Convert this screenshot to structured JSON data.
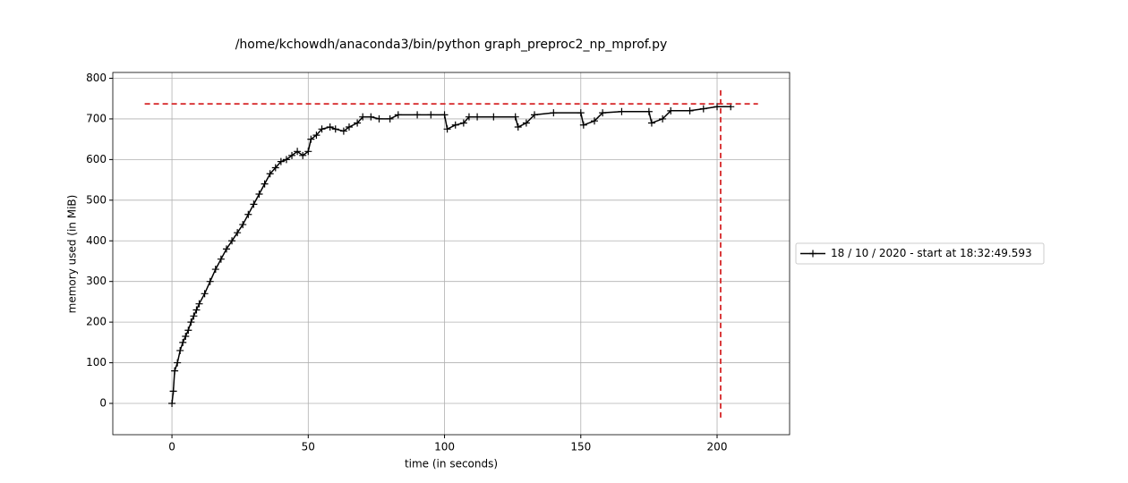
{
  "chart_data": {
    "type": "line",
    "title": "/home/kchowdh/anaconda3/bin/python graph_preproc2_np_mprof.py",
    "x_label": "time (in seconds)",
    "y_label": "memory used (in MiB)",
    "x": [
      0,
      0.5,
      1,
      2,
      3,
      4,
      5,
      6,
      7,
      8,
      9,
      10,
      12,
      14,
      16,
      18,
      20,
      22,
      24,
      26,
      28,
      30,
      32,
      34,
      36,
      38,
      40,
      42,
      44,
      46,
      48,
      50,
      51,
      53,
      55,
      58,
      60,
      63,
      65,
      68,
      70,
      73,
      76,
      80,
      83,
      90,
      95,
      100,
      101,
      104,
      107,
      109,
      112,
      118,
      126,
      127,
      130,
      133,
      140,
      150,
      151,
      155,
      158,
      165,
      175,
      176,
      180,
      183,
      190,
      195,
      200,
      205
    ],
    "series": [
      {
        "name": "18 / 10 / 2020 - start at 18:32:49.593",
        "color": "#000000",
        "values": [
          0,
          30,
          80,
          100,
          130,
          150,
          165,
          180,
          200,
          215,
          230,
          245,
          270,
          300,
          330,
          355,
          380,
          400,
          420,
          440,
          465,
          490,
          515,
          540,
          565,
          580,
          595,
          600,
          610,
          620,
          610,
          620,
          650,
          660,
          675,
          680,
          675,
          670,
          680,
          690,
          705,
          705,
          700,
          700,
          710,
          710,
          710,
          710,
          675,
          685,
          690,
          705,
          705,
          705,
          705,
          680,
          690,
          710,
          715,
          715,
          685,
          695,
          715,
          718,
          718,
          690,
          700,
          720,
          720,
          725,
          730,
          730
        ]
      }
    ],
    "reference_lines": [
      {
        "axis": "y",
        "value": 737,
        "range": [
          -10,
          215
        ],
        "color": "#d62728"
      },
      {
        "axis": "x",
        "value": 201.3,
        "range": [
          -35,
          775
        ],
        "color": "#d62728"
      }
    ],
    "xlim": [
      -21.7,
      226.6
    ],
    "ylim": [
      -77,
      814.3
    ],
    "xticks": [
      0,
      50,
      100,
      150,
      200
    ],
    "yticks": [
      0,
      100,
      200,
      300,
      400,
      500,
      600,
      700,
      800
    ],
    "grid": true,
    "legend": "right"
  }
}
